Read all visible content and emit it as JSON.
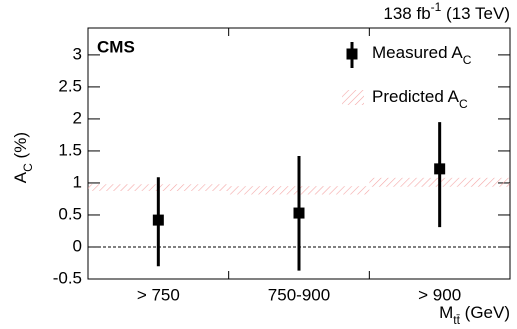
{
  "chart_data": {
    "type": "errorbar",
    "experiment": "CMS",
    "lumi": {
      "main": "138 fb",
      "sup": "-1",
      "rest": " (13 TeV)"
    },
    "y_label": {
      "main": "A",
      "sub": "C",
      "rest": " (%)"
    },
    "x_label": {
      "main": "M",
      "sub": "tt̄",
      "rest": " (GeV)"
    },
    "categories": [
      "> 750",
      "750-900",
      "> 900"
    ],
    "series": [
      {
        "name": "Measured A",
        "name_sub": "C",
        "color": "#000000",
        "values": [
          0.42,
          0.53,
          1.22
        ],
        "errors_low": [
          0.72,
          0.9,
          0.91
        ],
        "errors_high": [
          0.67,
          0.89,
          0.73
        ]
      },
      {
        "name": "Predicted A",
        "name_sub": "C",
        "color": "#f4a6a6",
        "low": [
          0.875,
          0.82,
          0.94
        ],
        "high": [
          0.98,
          0.95,
          1.08
        ]
      }
    ],
    "ylim": [
      -0.5,
      3.42
    ],
    "yticks": [
      -0.5,
      0,
      0.5,
      1,
      1.5,
      2,
      2.5,
      3
    ],
    "reference_line": 0
  }
}
